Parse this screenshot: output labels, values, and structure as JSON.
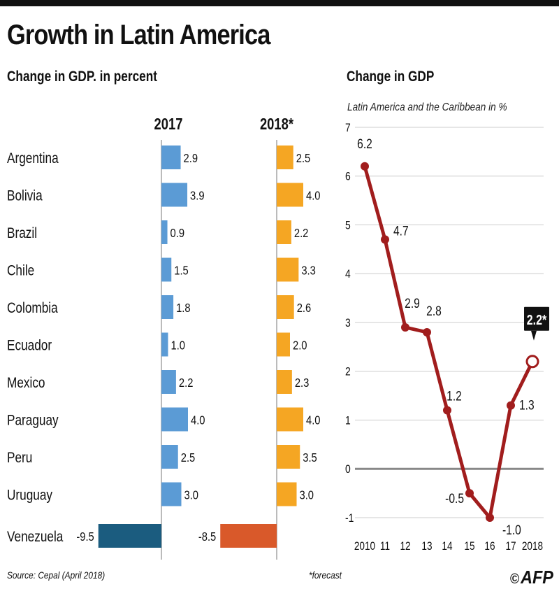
{
  "title": "Growth in Latin America",
  "left_subtitle": "Change in GDP. in percent",
  "right_subtitle": "Change in GDP",
  "right_caption": "Latin America and the Caribbean in %",
  "source": "Source: Cepal (April 2018)",
  "footnote": "*forecast",
  "logo_text": "AFP",
  "logo_symbol": "©",
  "colors": {
    "bar2017": "#5b9bd5",
    "bar2018": "#f5a623",
    "venezuela2017": "#1b5c7f",
    "venezuela2018": "#d9592a",
    "line": "#a11d1d",
    "zero": "#888888",
    "grid": "#cccccc"
  },
  "chart_data": [
    {
      "type": "bar",
      "orientation": "horizontal",
      "title": "Change in GDP. in percent",
      "categories": [
        "Argentina",
        "Bolivia",
        "Brazil",
        "Chile",
        "Colombia",
        "Ecuador",
        "Mexico",
        "Paraguay",
        "Peru",
        "Uruguay",
        "Venezuela"
      ],
      "series": [
        {
          "name": "2017",
          "values": [
            2.9,
            3.9,
            0.9,
            1.5,
            1.8,
            1.0,
            2.2,
            4.0,
            2.5,
            3.0,
            -9.5
          ],
          "labels": [
            "2.9",
            "3.9",
            "0.9",
            "1.5",
            "1.8",
            "1.0",
            "2.2",
            "4.0",
            "2.5",
            "3.0",
            "-9.5"
          ]
        },
        {
          "name": "2018*",
          "values": [
            2.5,
            4.0,
            2.2,
            3.3,
            2.6,
            2.0,
            2.3,
            4.0,
            3.5,
            3.0,
            -8.5
          ],
          "labels": [
            "2.5",
            "4.0",
            "2.2",
            "3.3",
            "2.6",
            "2.0",
            "2.3",
            "4.0",
            "3.5",
            "3.0",
            "-8.5"
          ]
        }
      ]
    },
    {
      "type": "line",
      "title": "Change in GDP",
      "subtitle": "Latin America and the Caribbean in %",
      "x": [
        "2010",
        "11",
        "12",
        "13",
        "14",
        "15",
        "16",
        "17",
        "2018"
      ],
      "y": [
        6.2,
        4.7,
        2.9,
        2.8,
        1.2,
        -0.5,
        -1.0,
        1.3,
        2.2
      ],
      "labels": [
        "6.2",
        "4.7",
        "2.9",
        "2.8",
        "1.2",
        "-0.5",
        "-1.0",
        "1.3",
        "2.2*"
      ],
      "forecast_index": 8,
      "ylim": [
        -1,
        7
      ],
      "yticks": [
        "-1",
        "0",
        "1",
        "2",
        "3",
        "4",
        "5",
        "6",
        "7"
      ]
    }
  ]
}
